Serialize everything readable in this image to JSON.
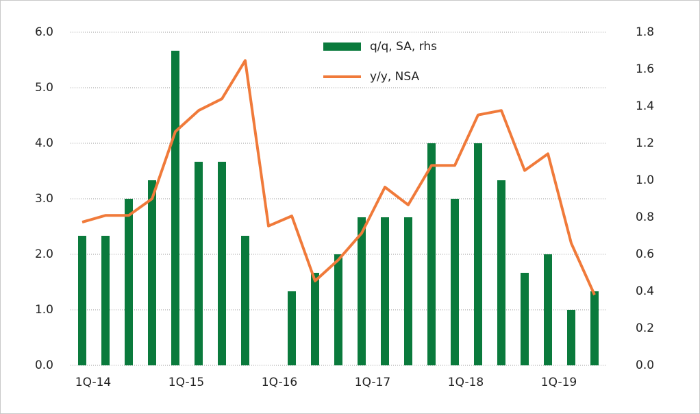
{
  "chart_data": {
    "type": "bar-line",
    "categories": [
      "1Q-14",
      null,
      null,
      null,
      "1Q-15",
      null,
      null,
      null,
      "1Q-16",
      null,
      null,
      null,
      "1Q-17",
      null,
      null,
      null,
      "1Q-18",
      null,
      null,
      null,
      "1Q-19",
      null,
      null
    ],
    "series": [
      {
        "name": "q/q, SA, rhs",
        "type": "bar",
        "axis": "y2",
        "color": "#0a7a3c",
        "values": [
          0.7,
          0.7,
          0.9,
          1.0,
          1.7,
          1.1,
          1.1,
          0.7,
          0,
          0.4,
          0.5,
          0.6,
          0.8,
          0.8,
          0.8,
          1.2,
          0.9,
          1.2,
          1.0,
          0.5,
          0.6,
          0.3,
          0.4
        ]
      },
      {
        "name": "y/y, NSA",
        "type": "line",
        "axis": "y",
        "color": "#f07a3a",
        "values": [
          2.58,
          2.7,
          2.7,
          3.0,
          4.21,
          4.59,
          4.8,
          5.49,
          2.51,
          2.69,
          1.52,
          1.9,
          2.38,
          3.21,
          2.89,
          3.6,
          3.6,
          4.51,
          4.59,
          3.51,
          3.81,
          2.2,
          1.27
        ]
      }
    ],
    "ylim": [
      0,
      6
    ],
    "yticks": [
      {
        "value": 0,
        "label": "0.0"
      },
      {
        "value": 1,
        "label": "1.0"
      },
      {
        "value": 2,
        "label": "2.0"
      },
      {
        "value": 3,
        "label": "3.0"
      },
      {
        "value": 4,
        "label": "4.0"
      },
      {
        "value": 5,
        "label": "5.0"
      },
      {
        "value": 6,
        "label": "6.0"
      }
    ],
    "y2lim": [
      0,
      1.8
    ],
    "y2ticks": [
      {
        "value": 0,
        "label": "0.0"
      },
      0.2,
      0.4,
      0.6,
      0.8,
      {
        "value": 1,
        "label": "1.0"
      },
      1.2,
      1.4,
      1.6,
      1.8
    ],
    "grid": true
  }
}
